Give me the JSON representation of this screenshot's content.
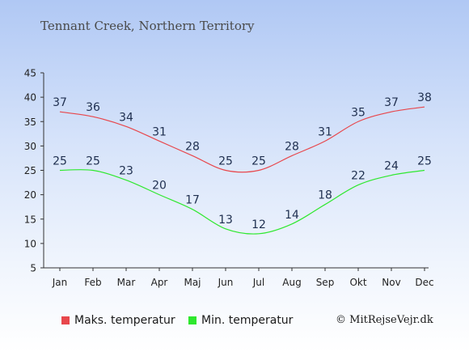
{
  "chart_data": {
    "type": "line",
    "title": "Tennant Creek, Northern Territory",
    "categories": [
      "Jan",
      "Feb",
      "Mar",
      "Apr",
      "Maj",
      "Jun",
      "Jul",
      "Aug",
      "Sep",
      "Okt",
      "Nov",
      "Dec"
    ],
    "series": [
      {
        "name": "Maks. temperatur",
        "color": "#e8474c",
        "values": [
          37,
          36,
          34,
          31,
          28,
          25,
          25,
          28,
          31,
          35,
          37,
          38
        ]
      },
      {
        "name": "Min. temperatur",
        "color": "#2ee82e",
        "values": [
          25,
          25,
          23,
          20,
          17,
          13,
          12,
          14,
          18,
          22,
          24,
          25
        ]
      }
    ],
    "ylim": [
      5,
      45
    ],
    "yticks": [
      5,
      10,
      15,
      20,
      25,
      30,
      35,
      40,
      45
    ],
    "legend_position": "bottom-left",
    "grid": false
  },
  "copyright": "© MitRejseVejr.dk"
}
